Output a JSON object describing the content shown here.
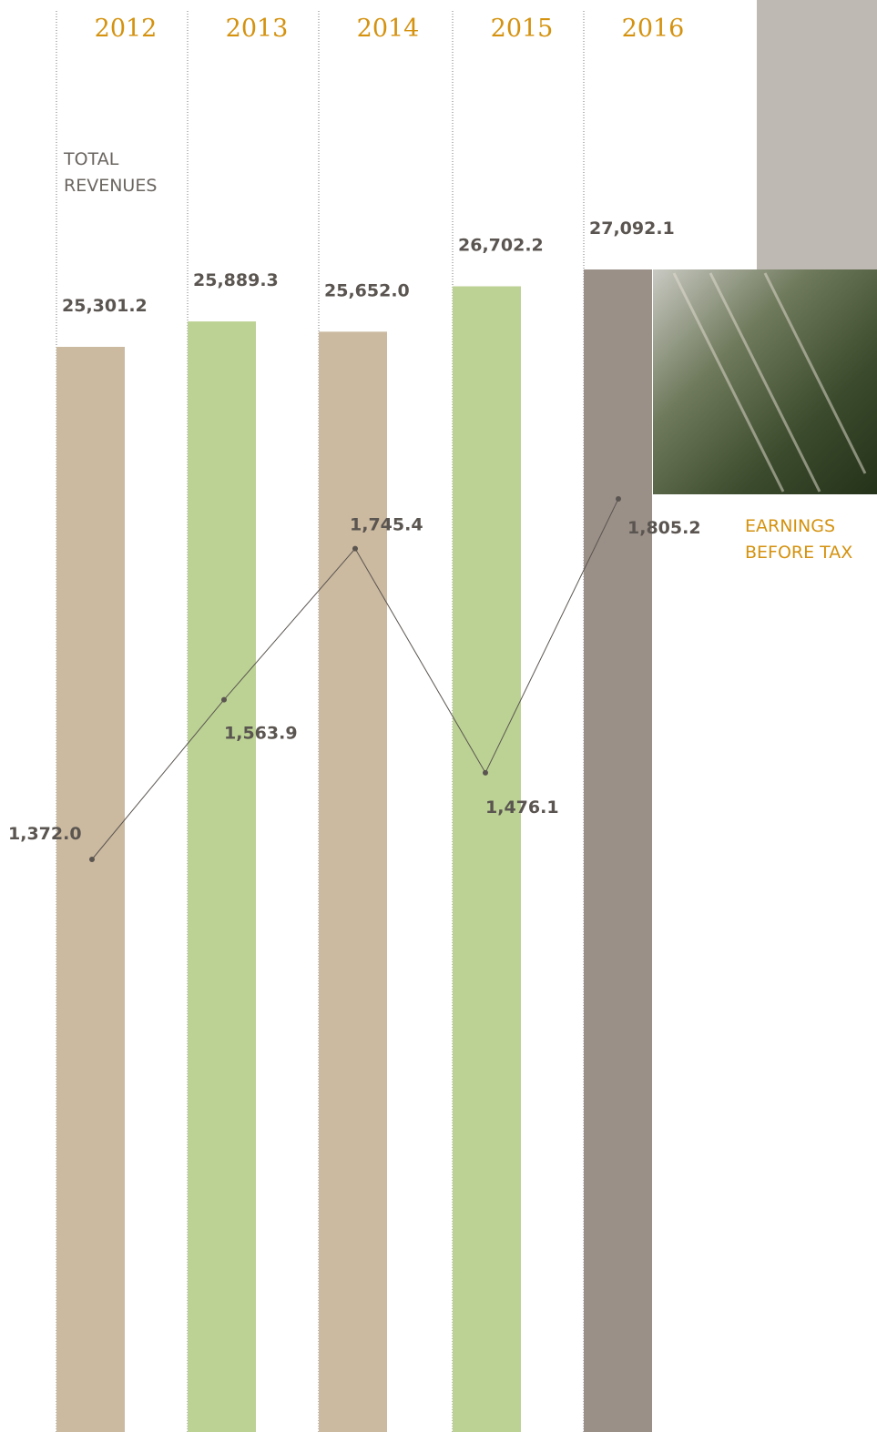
{
  "chart_data": {
    "type": "bar",
    "categories": [
      "2012",
      "2013",
      "2014",
      "2015",
      "2016"
    ],
    "series": [
      {
        "name": "TOTAL REVENUES",
        "type": "bar",
        "colors": [
          "#cbb9a0",
          "#bcd294",
          "#cbb9a0",
          "#bcd294",
          "#9b9088"
        ],
        "values": [
          25301.2,
          25889.3,
          25652.0,
          26702.2,
          27092.1
        ],
        "value_labels": [
          "25,301.2",
          "25,889.3",
          "25,652.0",
          "26,702.2",
          "27,092.1"
        ]
      },
      {
        "name": "EARNINGS BEFORE TAX",
        "type": "line",
        "color": "#5a5550",
        "values": [
          1372.0,
          1563.9,
          1745.4,
          1476.1,
          1805.2
        ],
        "value_labels": [
          "1,372.0",
          "1,563.9",
          "1,745.4",
          "1,476.1",
          "1,805.2"
        ]
      }
    ]
  }
}
